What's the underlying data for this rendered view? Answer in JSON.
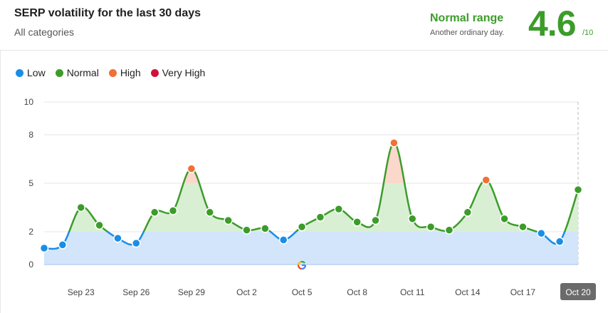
{
  "header": {
    "title": "SERP volatility for the last 30 days",
    "subtitle": "All categories",
    "range_label": "Normal range",
    "range_desc": "Another ordinary day.",
    "score": "4.6",
    "score_denom": "/10"
  },
  "legend": [
    {
      "label": "Low",
      "color": "#1a8ee6"
    },
    {
      "label": "Normal",
      "color": "#3c9c2a"
    },
    {
      "label": "High",
      "color": "#f07035"
    },
    {
      "label": "Very High",
      "color": "#d0103a"
    }
  ],
  "chart_data": {
    "type": "line",
    "ylim": [
      0,
      10
    ],
    "y_ticks": [
      "0",
      "2",
      "5",
      "8",
      "10"
    ],
    "y_tick_values": [
      0,
      2,
      5,
      8,
      10
    ],
    "thresholds": {
      "low": 2,
      "normal": 5
    },
    "grid": true,
    "x_ticks": [
      "Sep 23",
      "Sep 26",
      "Sep 29",
      "Oct 2",
      "Oct 5",
      "Oct 8",
      "Oct 11",
      "Oct 14",
      "Oct 17",
      "Oct 20"
    ],
    "x_tick_index": [
      2,
      5,
      8,
      11,
      14,
      17,
      20,
      23,
      26,
      29
    ],
    "highlighted_tick": "Oct 20",
    "values": [
      1.0,
      1.2,
      3.5,
      2.4,
      1.6,
      1.3,
      3.2,
      3.3,
      5.9,
      3.2,
      2.7,
      2.1,
      2.2,
      1.5,
      2.3,
      2.9,
      3.4,
      2.6,
      2.7,
      7.5,
      2.8,
      2.3,
      2.1,
      3.2,
      5.2,
      2.8,
      2.3,
      1.9,
      1.4,
      4.6
    ],
    "colors": {
      "low": "#1a8ee6",
      "normal": "#3c9c2a",
      "high": "#f07035",
      "very_high": "#d0103a",
      "low_fill": "#d2e5fb",
      "normal_fill": "#d9efd4",
      "high_fill": "#fbd8cb"
    }
  }
}
